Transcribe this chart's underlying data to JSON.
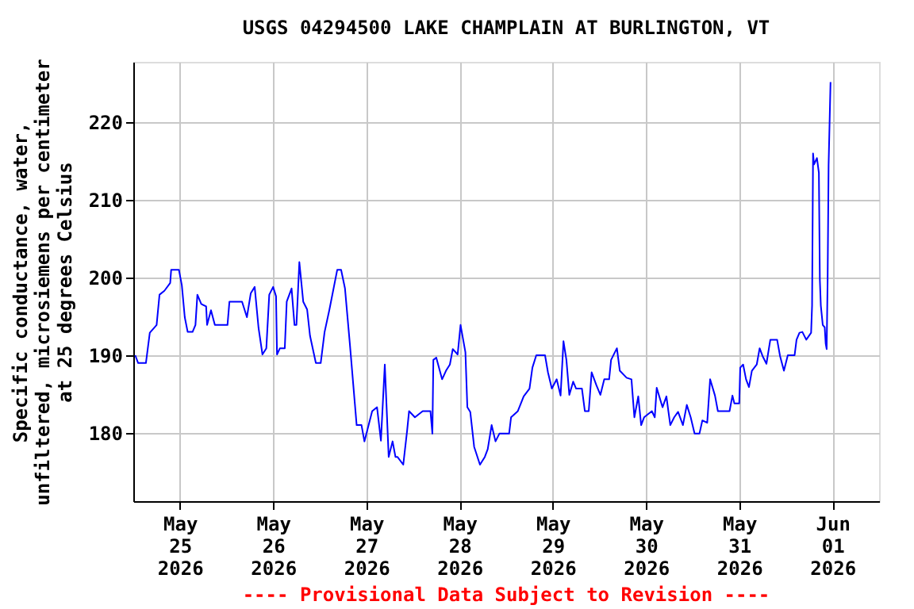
{
  "chart_data": {
    "type": "line",
    "title": "USGS 04294500 LAKE CHAMPLAIN AT BURLINGTON, VT",
    "ylabel": "Specific conductance, water,\nunfiltered, microsiemens per centimeter\nat 25 degrees Celsius",
    "annotations": [
      "---- Provisional Data Subject to Revision ----"
    ],
    "xlim": [
      "2026-05-24T12:00",
      "2026-06-01T12:00"
    ],
    "xticks": [
      {
        "value": "2026-05-25",
        "label": "May\n25\n2026"
      },
      {
        "value": "2026-05-26",
        "label": "May\n26\n2026"
      },
      {
        "value": "2026-05-27",
        "label": "May\n27\n2026"
      },
      {
        "value": "2026-05-28",
        "label": "May\n28\n2026"
      },
      {
        "value": "2026-05-29",
        "label": "May\n29\n2026"
      },
      {
        "value": "2026-05-30",
        "label": "May\n30\n2026"
      },
      {
        "value": "2026-05-31",
        "label": "May\n31\n2026"
      },
      {
        "value": "2026-06-01",
        "label": "Jun\n01\n2026"
      }
    ],
    "ylim": [
      171.2,
      227.8
    ],
    "yticks": [
      180,
      190,
      200,
      210,
      220
    ],
    "grid": true,
    "marker": "none",
    "line_style": "solid",
    "series": [
      {
        "color": "#0000ff",
        "x": [
          "2026-05-24T12:30",
          "2026-05-24T13:15",
          "2026-05-24T15:15",
          "2026-05-24T16:15",
          "2026-05-24T18:00",
          "2026-05-24T18:45",
          "2026-05-24T20:00",
          "2026-05-24T21:30",
          "2026-05-24T21:45",
          "2026-05-24T23:45",
          "2026-05-25T00:30",
          "2026-05-25T01:15",
          "2026-05-25T02:00",
          "2026-05-25T03:15",
          "2026-05-25T04:00",
          "2026-05-25T04:30",
          "2026-05-25T05:30",
          "2026-05-25T06:45",
          "2026-05-25T07:00",
          "2026-05-25T08:00",
          "2026-05-25T09:00",
          "2026-05-25T12:15",
          "2026-05-25T12:45",
          "2026-05-25T16:00",
          "2026-05-25T17:15",
          "2026-05-25T18:15",
          "2026-05-25T19:15",
          "2026-05-25T20:15",
          "2026-05-25T21:15",
          "2026-05-25T22:15",
          "2026-05-25T23:00",
          "2026-05-26T00:00",
          "2026-05-26T00:45",
          "2026-05-26T01:00",
          "2026-05-26T01:45",
          "2026-05-26T03:00",
          "2026-05-26T03:30",
          "2026-05-26T04:45",
          "2026-05-26T05:30",
          "2026-05-26T06:00",
          "2026-05-26T06:45",
          "2026-05-26T07:45",
          "2026-05-26T08:45",
          "2026-05-26T09:30",
          "2026-05-26T11:00",
          "2026-05-26T12:15",
          "2026-05-26T13:15",
          "2026-05-26T14:30",
          "2026-05-26T16:30",
          "2026-05-26T17:30",
          "2026-05-26T18:30",
          "2026-05-26T19:45",
          "2026-05-26T21:30",
          "2026-05-26T22:45",
          "2026-05-26T23:30",
          "2026-05-27T01:30",
          "2026-05-27T02:45",
          "2026-05-27T03:45",
          "2026-05-27T04:45",
          "2026-05-27T05:45",
          "2026-05-27T06:45",
          "2026-05-27T07:30",
          "2026-05-27T08:00",
          "2026-05-27T09:30",
          "2026-05-27T10:30",
          "2026-05-27T11:00",
          "2026-05-27T12:30",
          "2026-05-27T14:30",
          "2026-05-27T16:30",
          "2026-05-27T17:00",
          "2026-05-27T17:15",
          "2026-05-27T18:00",
          "2026-05-27T19:30",
          "2026-05-27T20:30",
          "2026-05-27T21:30",
          "2026-05-27T22:15",
          "2026-05-27T23:30",
          "2026-05-28T00:15",
          "2026-05-28T01:30",
          "2026-05-28T02:00",
          "2026-05-28T02:45",
          "2026-05-28T03:45",
          "2026-05-28T05:15",
          "2026-05-28T06:30",
          "2026-05-28T07:15",
          "2026-05-28T08:15",
          "2026-05-28T09:15",
          "2026-05-28T10:15",
          "2026-05-28T12:45",
          "2026-05-28T13:15",
          "2026-05-28T15:00",
          "2026-05-28T16:30",
          "2026-05-28T18:00",
          "2026-05-28T18:45",
          "2026-05-28T19:45",
          "2026-05-28T22:00",
          "2026-05-28T22:45",
          "2026-05-28T23:45",
          "2026-05-29T01:00",
          "2026-05-29T02:00",
          "2026-05-29T02:45",
          "2026-05-29T03:30",
          "2026-05-29T04:15",
          "2026-05-29T05:15",
          "2026-05-29T06:00",
          "2026-05-29T07:30",
          "2026-05-29T08:15",
          "2026-05-29T09:15",
          "2026-05-29T10:00",
          "2026-05-29T11:15",
          "2026-05-29T12:15",
          "2026-05-29T13:15",
          "2026-05-29T14:30",
          "2026-05-29T15:00",
          "2026-05-29T16:30",
          "2026-05-29T17:15",
          "2026-05-29T19:00",
          "2026-05-29T20:15",
          "2026-05-29T21:00",
          "2026-05-29T22:00",
          "2026-05-29T22:45",
          "2026-05-29T23:30",
          "2026-05-30T01:30",
          "2026-05-30T02:15",
          "2026-05-30T02:45",
          "2026-05-30T04:15",
          "2026-05-30T05:15",
          "2026-05-30T05:45",
          "2026-05-30T06:15",
          "2026-05-30T07:15",
          "2026-05-30T08:15",
          "2026-05-30T09:30",
          "2026-05-30T10:30",
          "2026-05-30T11:30",
          "2026-05-30T12:30",
          "2026-05-30T13:45",
          "2026-05-30T14:30",
          "2026-05-30T15:45",
          "2026-05-30T16:30",
          "2026-05-30T17:45",
          "2026-05-30T18:30",
          "2026-05-30T21:30",
          "2026-05-30T22:15",
          "2026-05-30T22:45",
          "2026-05-31T00:00",
          "2026-05-31T00:15",
          "2026-05-31T01:00",
          "2026-05-31T01:45",
          "2026-05-31T02:30",
          "2026-05-31T03:15",
          "2026-05-31T04:30",
          "2026-05-31T05:15",
          "2026-05-31T06:00",
          "2026-05-31T07:00",
          "2026-05-31T08:00",
          "2026-05-31T09:45",
          "2026-05-31T10:30",
          "2026-05-31T11:30",
          "2026-05-31T12:30",
          "2026-05-31T14:15",
          "2026-05-31T14:45",
          "2026-05-31T15:30",
          "2026-05-31T16:15",
          "2026-05-31T17:15",
          "2026-05-31T18:30",
          "2026-05-31T18:45",
          "2026-05-31T19:00",
          "2026-05-31T19:15",
          "2026-05-31T20:00",
          "2026-05-31T20:30",
          "2026-05-31T20:45",
          "2026-05-31T21:00",
          "2026-05-31T21:30",
          "2026-05-31T22:00",
          "2026-05-31T22:15",
          "2026-05-31T22:30",
          "2026-05-31T22:45",
          "2026-05-31T23:00",
          "2026-05-31T23:30"
        ],
        "values": [
          190,
          189,
          189,
          192.9,
          193.9,
          197.8,
          198.3,
          199.3,
          201,
          201,
          199,
          194.9,
          193,
          193,
          193.9,
          197.8,
          196.6,
          196.3,
          193.9,
          195.8,
          193.9,
          193.9,
          196.9,
          196.9,
          194.9,
          198,
          198.8,
          193.5,
          190.1,
          190.9,
          197.8,
          198.8,
          197.6,
          190.1,
          190.9,
          190.9,
          196.9,
          198.6,
          193.9,
          193.9,
          202,
          196.9,
          195.9,
          192.5,
          189,
          189,
          193,
          195.9,
          201,
          201,
          198.6,
          191.5,
          181,
          181,
          178.9,
          182.8,
          183.3,
          179,
          188.8,
          176.9,
          178.9,
          176.9,
          176.9,
          175.9,
          180.3,
          182.8,
          182,
          182.8,
          182.8,
          179.9,
          189.4,
          189.7,
          186.9,
          188,
          188.8,
          190.8,
          190.1,
          193.9,
          190.4,
          183.3,
          182.7,
          178.2,
          175.9,
          176.9,
          177.9,
          181,
          178.9,
          179.9,
          179.9,
          182,
          182.8,
          184.7,
          185.7,
          188.4,
          190,
          190,
          187.8,
          185.7,
          186.9,
          184.8,
          191.8,
          189.4,
          184.9,
          186.6,
          185.7,
          185.7,
          182.8,
          182.8,
          187.8,
          186.1,
          184.9,
          186.9,
          186.9,
          189.4,
          190.9,
          188,
          187.1,
          186.9,
          182,
          184.7,
          181,
          182,
          182.8,
          182,
          185.8,
          183.3,
          184.7,
          182.8,
          181,
          182,
          182.7,
          181,
          183.6,
          182,
          179.9,
          179.9,
          181.6,
          181.3,
          186.9,
          184.8,
          182.8,
          182.8,
          184.8,
          183.8,
          183.8,
          188.4,
          188.8,
          186.9,
          185.9,
          188,
          188.8,
          190.9,
          189.9,
          188.9,
          192,
          192,
          189.9,
          188,
          190,
          190,
          192,
          192.9,
          193,
          192,
          192.9,
          196.4,
          216,
          214.6,
          215.4,
          213.5,
          199.7,
          196.4,
          193.9,
          193.6,
          191.5,
          190.8,
          199.7,
          214.5,
          225.2
        ]
      }
    ]
  }
}
